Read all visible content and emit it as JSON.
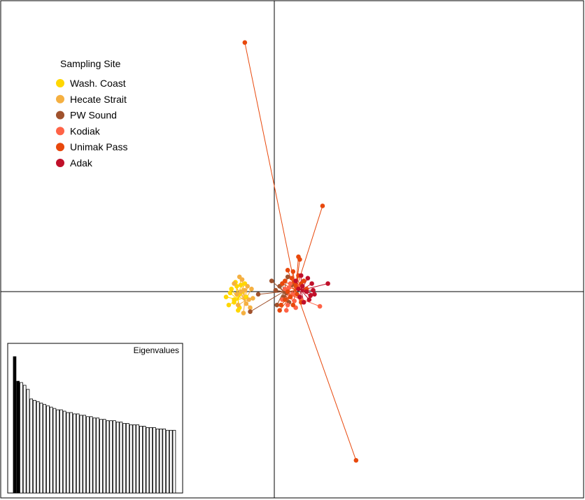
{
  "chart_data": {
    "type": "scatter",
    "legend": {
      "title": "Sampling Site",
      "placement": "top-left",
      "entries": [
        {
          "name": "Wash. Coast",
          "color": "#FFD700"
        },
        {
          "name": "Hecate Strait",
          "color": "#F5B041"
        },
        {
          "name": "PW Sound",
          "color": "#A0522D"
        },
        {
          "name": "Kodiak",
          "color": "#FF6347"
        },
        {
          "name": "Unimak Pass",
          "color": "#E8480C"
        },
        {
          "name": "Adak",
          "color": "#C0102A"
        }
      ]
    },
    "axes": {
      "x_range": [
        -10,
        11
      ],
      "y_range": [
        -8,
        11
      ],
      "grid": false
    },
    "centroids": [
      {
        "site": "Wash. Coast",
        "x": -1.35,
        "y": -0.3
      },
      {
        "site": "Hecate Strait",
        "x": -1.1,
        "y": -0.35
      },
      {
        "site": "PW Sound",
        "x": 0.35,
        "y": 0.0
      },
      {
        "site": "Kodiak",
        "x": 0.55,
        "y": -0.1
      },
      {
        "site": "Unimak Pass",
        "x": 0.8,
        "y": 0.05
      },
      {
        "site": "Adak",
        "x": 1.0,
        "y": 0.05
      }
    ],
    "series": [
      {
        "name": "Wash. Coast",
        "points": [
          [
            -1.8,
            -0.2
          ],
          [
            -1.7,
            -0.5
          ],
          [
            -1.6,
            0.1
          ],
          [
            -1.5,
            -0.3
          ],
          [
            -1.4,
            0.2
          ],
          [
            -1.3,
            -0.6
          ],
          [
            -1.2,
            0.0
          ],
          [
            -1.1,
            0.3
          ],
          [
            -1.5,
            -0.4
          ],
          [
            -1.3,
            -0.1
          ],
          [
            -1.45,
            0.35
          ],
          [
            -1.05,
            -0.2
          ],
          [
            -1.65,
            -0.05
          ],
          [
            -1.25,
            0.25
          ],
          [
            -1.35,
            -0.7
          ]
        ]
      },
      {
        "name": "Hecate Strait",
        "points": [
          [
            -1.5,
            0.3
          ],
          [
            -1.35,
            -0.5
          ],
          [
            -1.25,
            0.0
          ],
          [
            -1.15,
            -0.8
          ],
          [
            -1.0,
            0.2
          ],
          [
            -0.95,
            -0.3
          ],
          [
            -0.85,
            0.1
          ],
          [
            -1.2,
            0.45
          ],
          [
            -0.9,
            -0.6
          ],
          [
            -1.4,
            -0.1
          ],
          [
            -1.1,
            0.05
          ],
          [
            -1.3,
            0.55
          ],
          [
            -0.8,
            -0.25
          ],
          [
            -1.05,
            -0.45
          ]
        ]
      },
      {
        "name": "PW Sound",
        "points": [
          [
            -0.6,
            -0.1
          ],
          [
            -0.1,
            0.4
          ],
          [
            0.1,
            -0.5
          ],
          [
            0.2,
            0.2
          ],
          [
            0.35,
            -0.2
          ],
          [
            0.5,
            0.55
          ],
          [
            0.55,
            -0.4
          ],
          [
            -0.9,
            -0.75
          ],
          [
            0.3,
            0.3
          ],
          [
            0.45,
            -0.05
          ],
          [
            0.65,
            0.25
          ],
          [
            0.05,
            0.05
          ]
        ]
      },
      {
        "name": "Kodiak",
        "points": [
          [
            0.3,
            -0.3
          ],
          [
            0.4,
            0.1
          ],
          [
            0.5,
            -0.5
          ],
          [
            0.6,
            0.3
          ],
          [
            0.7,
            -0.1
          ],
          [
            0.8,
            -0.6
          ],
          [
            0.9,
            0.2
          ],
          [
            1.0,
            -0.3
          ],
          [
            1.7,
            -0.55
          ],
          [
            0.55,
            0.15
          ],
          [
            0.75,
            -0.35
          ],
          [
            0.45,
            -0.7
          ]
        ]
      },
      {
        "name": "Unimak Pass",
        "points": [
          [
            -1.1,
            9.3
          ],
          [
            1.8,
            3.2
          ],
          [
            0.9,
            1.3
          ],
          [
            0.95,
            1.2
          ],
          [
            0.7,
            0.75
          ],
          [
            0.4,
            0.4
          ],
          [
            0.5,
            0.8
          ],
          [
            0.6,
            -0.2
          ],
          [
            0.8,
            0.2
          ],
          [
            1.0,
            -0.4
          ],
          [
            0.2,
            -0.7
          ],
          [
            0.3,
            0.3
          ],
          [
            0.9,
            0.6
          ],
          [
            1.2,
            0.1
          ],
          [
            0.7,
            -0.5
          ],
          [
            0.5,
            0.0
          ],
          [
            0.4,
            -0.3
          ],
          [
            1.1,
            0.4
          ],
          [
            3.05,
            -6.3
          ],
          [
            0.65,
            0.5
          ],
          [
            0.85,
            -0.1
          ],
          [
            1.0,
            0.3
          ],
          [
            0.25,
            -0.5
          ],
          [
            0.75,
            0.35
          ]
        ]
      },
      {
        "name": "Adak",
        "points": [
          [
            0.8,
            0.4
          ],
          [
            1.0,
            0.6
          ],
          [
            1.2,
            0.0
          ],
          [
            1.3,
            -0.3
          ],
          [
            1.4,
            0.3
          ],
          [
            1.5,
            -0.1
          ],
          [
            2.0,
            0.3
          ],
          [
            1.1,
            -0.4
          ],
          [
            0.9,
            0.1
          ],
          [
            1.25,
            0.5
          ],
          [
            1.35,
            -0.15
          ],
          [
            1.05,
            0.2
          ],
          [
            1.45,
            0.05
          ],
          [
            0.95,
            -0.2
          ]
        ]
      }
    ],
    "eigenvalues": {
      "title": "Eigenvalues",
      "values": [
        100,
        82,
        81,
        79,
        76,
        69,
        68,
        67,
        66,
        65,
        64,
        63,
        62,
        61,
        61,
        60,
        59,
        59,
        58,
        58,
        57,
        57,
        56,
        56,
        55,
        55,
        54,
        54,
        53,
        53,
        53,
        52,
        52,
        51,
        51,
        50,
        50,
        50,
        49,
        49,
        48,
        48,
        48,
        47,
        47,
        47,
        46,
        46,
        46
      ],
      "highlighted": 2
    }
  }
}
